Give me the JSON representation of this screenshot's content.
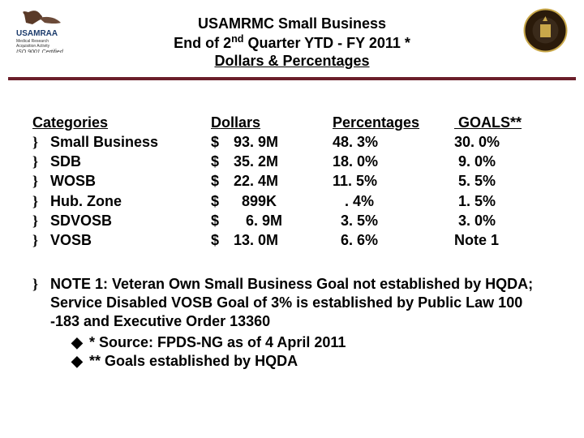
{
  "title": {
    "line1": "USAMRMC Small Business",
    "line2_pre": "End of 2",
    "line2_sup": "nd",
    "line2_post": " Quarter YTD - FY 2011  *",
    "line3": "Dollars & Percentages"
  },
  "headers": {
    "categories": "Categories",
    "dollars": "Dollars",
    "percentages": "Percentages",
    "goals": "GOALS**"
  },
  "rows": [
    {
      "category": "Small Business",
      "dollars": "93. 9M",
      "percent": "48. 3%",
      "goal": "30. 0%"
    },
    {
      "category": "SDB",
      "dollars": "35. 2M",
      "percent": "18. 0%",
      "goal": " 9. 0%"
    },
    {
      "category": "WOSB",
      "dollars": "22. 4M",
      "percent": "11. 5%",
      "goal": " 5. 5%"
    },
    {
      "category": "Hub. Zone",
      "dollars": "  899K",
      "percent": "   . 4%",
      "goal": " 1. 5%"
    },
    {
      "category": "SDVOSB",
      "dollars": "   6. 9M",
      "percent": "  3. 5%",
      "goal": " 3. 0%"
    },
    {
      "category": "VOSB",
      "dollars": "13. 0M",
      "percent": "  6. 6%",
      "goal": "Note 1"
    }
  ],
  "note": {
    "text": "NOTE 1: Veteran Own Small Business Goal not established by HQDA; Service Disabled VOSB Goal of 3% is established by Public Law 100 -183 and Executive Order 13360",
    "sub": [
      "* Source:  FPDS-NG as of 4 April 2011",
      "** Goals established by HQDA"
    ]
  },
  "logos": {
    "left_alt": "USAMRAA logo",
    "right_alt": "Army seal",
    "iso_text": "ISO 9001 Certified"
  },
  "colors": {
    "rule": "#6b1f2a",
    "text": "#000000",
    "bg": "#ffffff",
    "seal_dark": "#2a1a0a",
    "seal_gold": "#c9a84a",
    "eagle": "#5a3a28"
  },
  "bullets": {
    "main": "}",
    "sub": "◆"
  }
}
